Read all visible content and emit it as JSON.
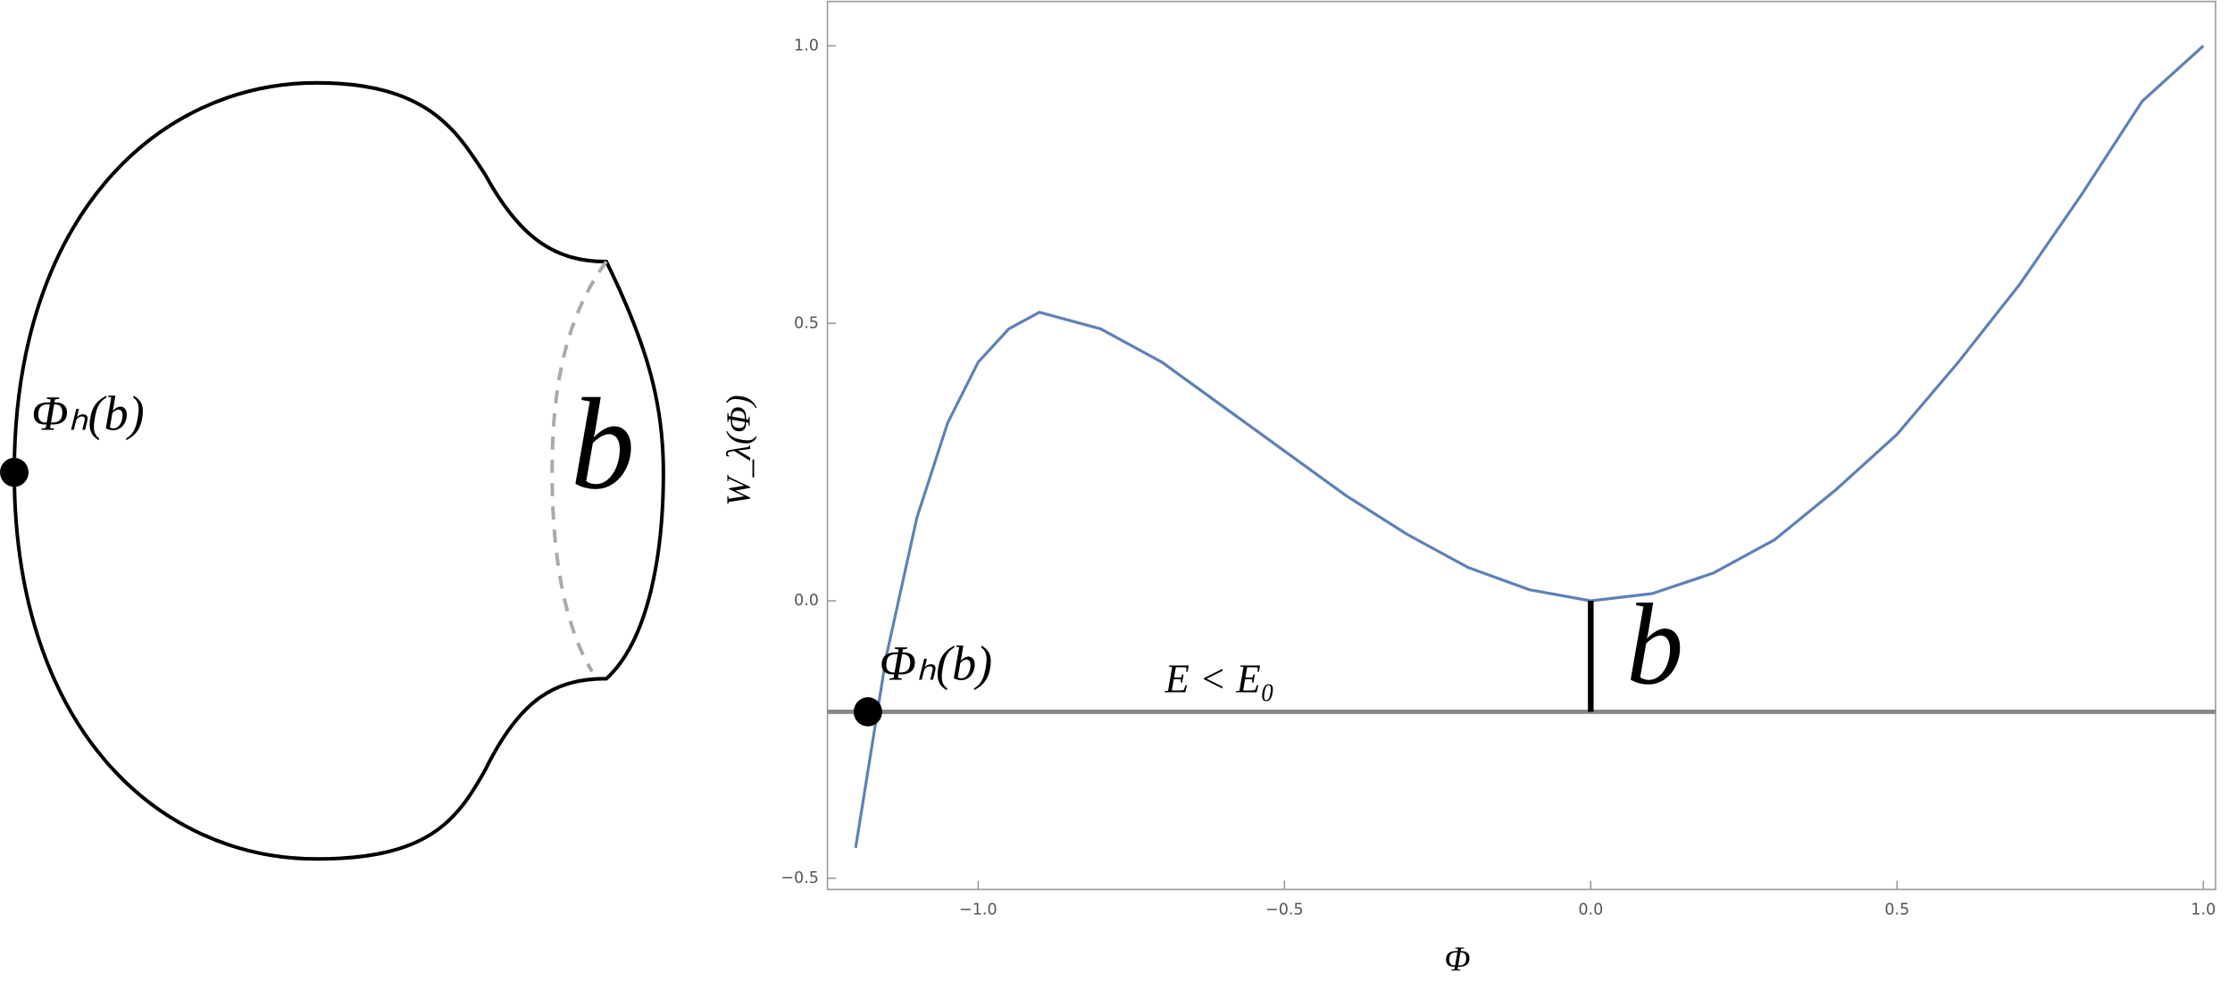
{
  "diagram": {
    "point_label": "Φₕ(b)",
    "boundary_label": "b"
  },
  "chart_data": {
    "type": "line",
    "xlabel": "Φ",
    "ylabel": "W_λ(Φ)",
    "x": [
      -1.2,
      -1.15,
      -1.1,
      -1.05,
      -1.0,
      -0.95,
      -0.9,
      -0.8,
      -0.7,
      -0.6,
      -0.5,
      -0.4,
      -0.3,
      -0.2,
      -0.1,
      0.0,
      0.1,
      0.2,
      0.3,
      0.4,
      0.5,
      0.6,
      0.7,
      0.8,
      0.9,
      1.0
    ],
    "series": [
      {
        "name": "W_λ(Φ)",
        "color": "#5e81b5",
        "values": [
          -0.445,
          -0.1,
          0.15,
          0.32,
          0.43,
          0.49,
          0.52,
          0.49,
          0.43,
          0.35,
          0.27,
          0.19,
          0.12,
          0.06,
          0.02,
          0.0,
          0.013,
          0.05,
          0.11,
          0.2,
          0.3,
          0.43,
          0.57,
          0.73,
          0.9,
          1.0
        ]
      }
    ],
    "energy_level": -0.2,
    "energy_label": "E < E₀",
    "marked_point": {
      "label": "Φₕ(b)",
      "x": -1.18
    },
    "gap_label": "b",
    "xlim": [
      -1.246,
      1.02
    ],
    "ylim": [
      -0.52,
      1.08
    ],
    "xticks": [
      {
        "value": -1.0,
        "label": "−1.0"
      },
      {
        "value": -0.5,
        "label": "−0.5"
      },
      {
        "value": 0.0,
        "label": "0.0"
      },
      {
        "value": 0.5,
        "label": "0.5"
      },
      {
        "value": 1.0,
        "label": "1.0"
      }
    ],
    "yticks": [
      {
        "value": -0.5,
        "label": "−0.5"
      },
      {
        "value": 0.0,
        "label": "0.0"
      },
      {
        "value": 0.5,
        "label": "0.5"
      },
      {
        "value": 1.0,
        "label": "1.0"
      }
    ]
  }
}
